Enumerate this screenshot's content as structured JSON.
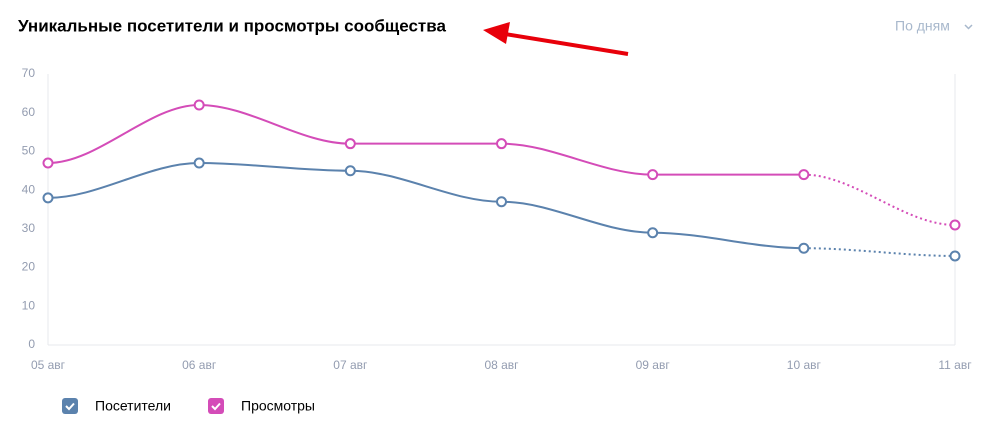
{
  "chart_data": {
    "type": "line",
    "title": "Уникальные посетители и просмотры сообщества",
    "categories": [
      "05 авг",
      "06 авг",
      "07 авг",
      "08 авг",
      "09 авг",
      "10 авг",
      "11 авг"
    ],
    "ylim": [
      0,
      70
    ],
    "yticks": [
      0,
      10,
      20,
      30,
      40,
      50,
      60,
      70
    ],
    "series": [
      {
        "name": "Посетители",
        "color": "#5b82ad",
        "values": [
          38,
          47,
          45,
          37,
          29,
          25,
          23
        ]
      },
      {
        "name": "Просмотры",
        "color": "#d44cb8",
        "values": [
          47,
          62,
          52,
          52,
          44,
          44,
          31
        ]
      }
    ]
  },
  "period_selector": "По дням"
}
